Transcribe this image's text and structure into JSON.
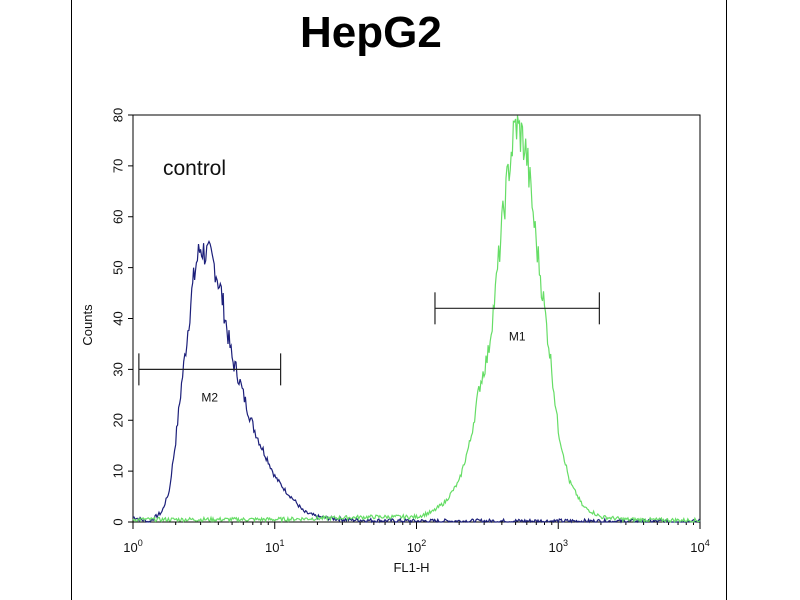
{
  "chart_data": {
    "type": "line",
    "title": "HepG2",
    "xlabel": "FL1-H",
    "ylabel": "Counts",
    "x_scale": "log",
    "xlim": [
      1,
      10000
    ],
    "ylim": [
      0,
      80
    ],
    "x_tick_labels": [
      {
        "base": "10",
        "exp": "0"
      },
      {
        "base": "10",
        "exp": "1"
      },
      {
        "base": "10",
        "exp": "2"
      },
      {
        "base": "10",
        "exp": "3"
      },
      {
        "base": "10",
        "exp": "4"
      }
    ],
    "x_tick_values": [
      1,
      10,
      100,
      1000,
      10000
    ],
    "y_ticks": [
      "0",
      "10",
      "20",
      "30",
      "40",
      "50",
      "60",
      "70",
      "80"
    ],
    "y_tick_values": [
      0,
      10,
      20,
      30,
      40,
      50,
      60,
      70,
      80
    ],
    "annotation": "control",
    "series": [
      {
        "color": "#1c1f7a",
        "x": [
          1.0,
          1.3,
          1.6,
          1.8,
          2.0,
          2.2,
          2.4,
          2.6,
          2.8,
          3.0,
          3.2,
          3.5,
          3.8,
          4.2,
          4.6,
          5.0,
          5.5,
          6.0,
          7.0,
          8.0,
          9.0,
          10.0,
          12.0,
          14.0,
          16.0,
          20.0,
          30.0,
          50.0,
          100.0,
          1000.0,
          10000.0
        ],
        "y": [
          1,
          0,
          2,
          6,
          16,
          27,
          36,
          45,
          51,
          54,
          53,
          52,
          50,
          45,
          38,
          32,
          29,
          25,
          19,
          15,
          12,
          9,
          6,
          4,
          2,
          1,
          0.5,
          0.3,
          0.2,
          0.2,
          0.1
        ]
      },
      {
        "color": "#66dd66",
        "x": [
          1.0,
          10.0,
          50.0,
          100.0,
          130.0,
          160.0,
          200.0,
          240.0,
          280.0,
          320.0,
          360.0,
          400.0,
          450.0,
          500.0,
          550.0,
          600.0,
          700.0,
          800.0,
          900.0,
          1000.0,
          1200.0,
          1500.0,
          2000.0,
          3000.0,
          10000.0
        ],
        "y": [
          0.5,
          0.5,
          1,
          1,
          2,
          4,
          8,
          16,
          27,
          33,
          45,
          58,
          70,
          78,
          76,
          72,
          55,
          42,
          30,
          18,
          8,
          3,
          1,
          0.5,
          0.3
        ]
      }
    ],
    "markers": [
      {
        "label": "M2",
        "x_start": 1.1,
        "x_end": 11.0,
        "y": 30
      },
      {
        "label": "M1",
        "x_start": 135.0,
        "x_end": 1950.0,
        "y": 42
      }
    ]
  }
}
